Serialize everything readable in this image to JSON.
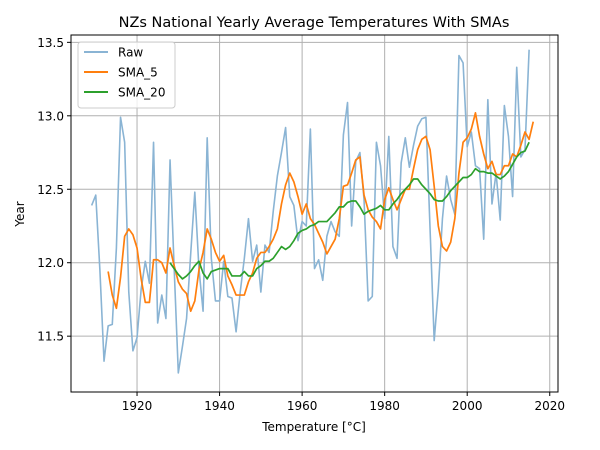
{
  "chart_data": {
    "type": "line",
    "title": "NZs National Yearly Average Temperatures With SMAs",
    "xlabel": "Temperature [$^{\\circ}C$]",
    "xlabel_display": "Temperature [°C]",
    "ylabel": "Year",
    "xlim": [
      1904,
      2022
    ],
    "ylim": [
      11.12,
      13.55
    ],
    "xticks": [
      1920,
      1940,
      1960,
      1980,
      2000,
      2020
    ],
    "xtick_labels": [
      "1920",
      "1940",
      "1960",
      "1980",
      "2000",
      "2020"
    ],
    "yticks": [
      11.5,
      12.0,
      12.5,
      13.0,
      13.5
    ],
    "ytick_labels": [
      "11.5",
      "12.0",
      "12.5",
      "13.0",
      "13.5"
    ],
    "grid": true,
    "legend_position": "top-left",
    "series": [
      {
        "name": "Raw",
        "color": "#8ab4d4",
        "x_start": 1909,
        "values": [
          12.39,
          12.46,
          11.95,
          11.33,
          11.57,
          11.58,
          12.1,
          12.99,
          12.82,
          11.8,
          11.4,
          11.49,
          11.82,
          12.01,
          11.86,
          12.82,
          11.59,
          11.78,
          11.62,
          12.7,
          11.96,
          11.25,
          11.43,
          11.62,
          12.06,
          12.48,
          11.96,
          11.67,
          12.85,
          12.03,
          11.74,
          11.74,
          12.01,
          11.77,
          11.76,
          11.53,
          11.8,
          12.03,
          12.3,
          12.01,
          12.12,
          11.8,
          12.12,
          12.07,
          12.35,
          12.59,
          12.75,
          12.92,
          12.45,
          12.39,
          12.15,
          12.28,
          12.25,
          12.91,
          11.96,
          12.02,
          11.88,
          12.18,
          12.28,
          12.21,
          12.18,
          12.87,
          13.09,
          12.25,
          12.69,
          12.75,
          12.43,
          11.74,
          11.77,
          12.82,
          12.66,
          12.3,
          12.86,
          12.11,
          12.03,
          12.68,
          12.85,
          12.65,
          12.8,
          12.93,
          12.98,
          12.99,
          12.23,
          11.47,
          11.82,
          12.3,
          12.59,
          12.43,
          12.33,
          13.41,
          13.36,
          12.79,
          12.89,
          12.66,
          12.64,
          12.16,
          13.11,
          12.4,
          12.61,
          12.29,
          13.07,
          12.86,
          12.45,
          13.33,
          12.72,
          12.77,
          13.45
        ]
      },
      {
        "name": "SMA_5",
        "color": "#ff7f0e",
        "x_start": 1913,
        "values": [
          11.94,
          11.78,
          11.69,
          11.9,
          12.18,
          12.23,
          12.19,
          12.1,
          11.89,
          11.73,
          11.73,
          12.02,
          12.02,
          12.0,
          11.93,
          12.1,
          11.98,
          11.87,
          11.82,
          11.79,
          11.67,
          11.74,
          11.95,
          12.07,
          12.23,
          12.16,
          12.07,
          12.01,
          12.05,
          11.91,
          11.85,
          11.78,
          11.78,
          11.78,
          11.87,
          11.93,
          12.03,
          12.07,
          12.07,
          12.11,
          12.16,
          12.23,
          12.4,
          12.53,
          12.61,
          12.55,
          12.45,
          12.33,
          12.4,
          12.3,
          12.26,
          12.2,
          12.14,
          12.06,
          12.11,
          12.16,
          12.3,
          12.52,
          12.53,
          12.61,
          12.7,
          12.72,
          12.46,
          12.36,
          12.31,
          12.28,
          12.23,
          12.43,
          12.51,
          12.43,
          12.36,
          12.43,
          12.5,
          12.5,
          12.64,
          12.77,
          12.84,
          12.86,
          12.77,
          12.52,
          12.25,
          12.11,
          12.08,
          12.14,
          12.3,
          12.61,
          12.82,
          12.85,
          12.91,
          13.02,
          12.86,
          12.74,
          12.64,
          12.69,
          12.6,
          12.6,
          12.66,
          12.66,
          12.74,
          12.72,
          12.8,
          12.89,
          12.84,
          12.96
        ]
      },
      {
        "name": "SMA_20",
        "color": "#2ca02c",
        "x_start": 1928,
        "values": [
          12.0,
          11.96,
          11.92,
          11.89,
          11.91,
          11.94,
          11.98,
          12.01,
          11.93,
          11.89,
          11.94,
          11.95,
          11.96,
          11.96,
          11.96,
          11.91,
          11.91,
          11.91,
          11.94,
          11.91,
          11.91,
          11.96,
          11.98,
          12.01,
          12.01,
          12.03,
          12.07,
          12.11,
          12.09,
          12.11,
          12.15,
          12.2,
          12.22,
          12.23,
          12.25,
          12.26,
          12.28,
          12.28,
          12.28,
          12.31,
          12.34,
          12.38,
          12.38,
          12.41,
          12.42,
          12.42,
          12.38,
          12.33,
          12.35,
          12.36,
          12.37,
          12.39,
          12.36,
          12.36,
          12.4,
          12.43,
          12.47,
          12.5,
          12.53,
          12.57,
          12.57,
          12.53,
          12.5,
          12.47,
          12.43,
          12.42,
          12.42,
          12.45,
          12.49,
          12.52,
          12.55,
          12.58,
          12.58,
          12.6,
          12.64,
          12.62,
          12.62,
          12.61,
          12.61,
          12.59,
          12.57,
          12.59,
          12.62,
          12.67,
          12.72,
          12.75,
          12.76,
          12.82
        ]
      }
    ]
  }
}
